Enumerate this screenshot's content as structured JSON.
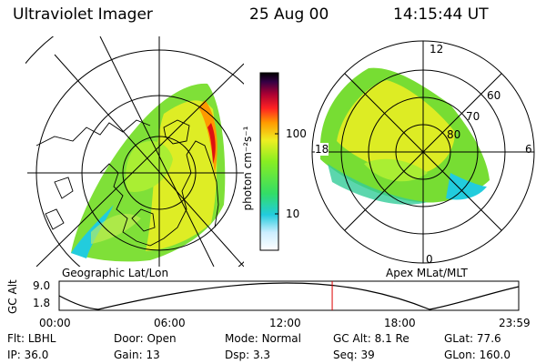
{
  "header": {
    "instrument": "Ultraviolet Imager",
    "date": "25 Aug 00",
    "time": "14:15:44 UT"
  },
  "geo_panel": {
    "caption": "Geographic Lat/Lon"
  },
  "apex_panel": {
    "caption": "Apex MLat/MLT",
    "mlt_labels": [
      "12",
      "18",
      "6",
      "0"
    ],
    "mlat_labels": [
      "60",
      "70",
      "80"
    ]
  },
  "colorbar": {
    "unit_label": "photon cm⁻²s⁻¹",
    "ticks": [
      "100",
      "10"
    ]
  },
  "alt_plot": {
    "axis_label": "GC Alt",
    "y_ticks": [
      "9.0",
      "1.8"
    ],
    "x_ticks": [
      "00:00",
      "06:00",
      "12:00",
      "18:00",
      "23:59"
    ],
    "current_time_hours": 14.26
  },
  "status": {
    "row1": [
      {
        "key": "Flt:",
        "value": "LBHL"
      },
      {
        "key": "Door:",
        "value": "Open"
      },
      {
        "key": "Mode:",
        "value": "Normal"
      },
      {
        "key": "GC Alt:",
        "value": "8.1 Re"
      },
      {
        "key": "GLat:",
        "value": "77.6"
      }
    ],
    "row2": [
      {
        "key": "IP:",
        "value": "36.0"
      },
      {
        "key": "Gain:",
        "value": "13"
      },
      {
        "key": "Dsp:",
        "value": "3.3"
      },
      {
        "key": "Seq:",
        "value": "39"
      },
      {
        "key": "GLon:",
        "value": "160.0"
      }
    ]
  },
  "colors": {
    "green": "#66dd22",
    "yellow": "#eeee22",
    "cyan": "#22ccdd",
    "orange": "#ff9900",
    "red": "#dd1111",
    "marker": "#dd0000"
  }
}
